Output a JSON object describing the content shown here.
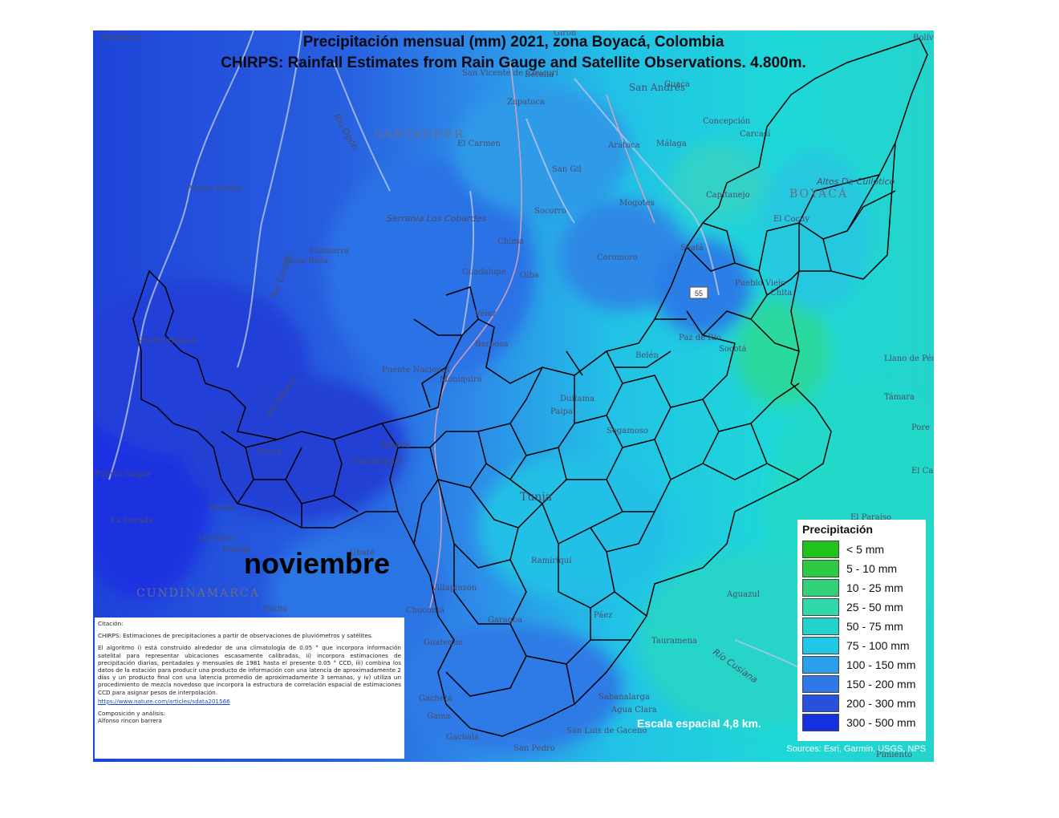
{
  "title_line1": "Precipitación mensual (mm)  2021, zona Boyacá, Colombia",
  "title_line2": "CHIRPS: Rainfall Estimates from Rain Gauge and Satellite Observations.  4.800m.",
  "month_label": "noviembre",
  "scale_text": "Escala espacial 4,8 km.",
  "sources_text": "Sources: Esri, Garmin, USGS, NPS",
  "road_shield": "55",
  "legend": {
    "title": "Precipitación",
    "classes": [
      {
        "label": "< 5 mm",
        "color": "#22c21c"
      },
      {
        "label": "5 - 10 mm",
        "color": "#2fca45"
      },
      {
        "label": "10 - 25 mm",
        "color": "#33d07a"
      },
      {
        "label": "25 - 50 mm",
        "color": "#2ed8a8"
      },
      {
        "label": "50 - 75 mm",
        "color": "#22d3cc"
      },
      {
        "label": "75 - 100 mm",
        "color": "#1ec8e6"
      },
      {
        "label": "100 - 150 mm",
        "color": "#2aa0ea"
      },
      {
        "label": "150 - 200 mm",
        "color": "#2f78e8"
      },
      {
        "label": "200 - 300 mm",
        "color": "#2750dc"
      },
      {
        "label": "300 - 500 mm",
        "color": "#1530e0"
      }
    ]
  },
  "citation": {
    "heading": "Citación:",
    "line1": "CHIRPS: Estimaciones de precipitaciones a partir de observaciones de pluviómetros y satélites.",
    "body": "El algoritmo i) está construido alrededor de una climatología de 0.05 ° que incorpora información satelital para representar ubicaciones escasamente calibradas, ii) incorpora estimaciones de precipitación diarias, pentadales y mensuales de 1981 hasta el presente 0.05 ° CCD, iii) combina los datos de la estación para producir una producto de información con una latencia de aproximadamente 2 días y un producto final con una latencia promedio de aproximadamente 3 semanas, y iv) utiliza un procedimiento de mezcla novedoso que incorpora la estructura de correlación espacial de estimaciones CCD para asignar pesos de interpolación.",
    "link": "https://www.nature.com/articles/sdata201566",
    "credit_label": "Composición y análisis:",
    "credit_name": "Alfonso rincon barrera"
  },
  "regions": [
    "SANTANDER",
    "BOYACÁ",
    "CUNDINAMARCA"
  ],
  "features": [
    "Serranía Los Cobardes",
    "Altos De Cuilotico",
    "Río Carare",
    "Río Opón",
    "Río Cusiana",
    "Río Minero"
  ],
  "places": [
    "Girón",
    "Bolív",
    "Remedios",
    "Betulia",
    "San Vicente de Chucurí",
    "Zapatoca",
    "San Andrés",
    "Guaca",
    "Concepción",
    "Carcasí",
    "El Carmen",
    "Málaga",
    "Aratoca",
    "San Gil",
    "Socorro",
    "Mogotes",
    "Capitanejo",
    "Puerto Berrío",
    "Cimitarra",
    "Santa Rosa",
    "Chima",
    "Guadalupe",
    "Oiba",
    "Coromoro",
    "Soatá",
    "El Cocuy",
    "Puerto Boyacá",
    "Vélez",
    "Puente Nacional",
    "Barbosa",
    "Moniquirá",
    "Belén",
    "Paz de Río",
    "Pueblo Viejo",
    "Chita",
    "Socotá",
    "Paipa",
    "Duitama",
    "Sogamoso",
    "Saboyá",
    "Chiquinquirá",
    "Tunja",
    "Llano de Pérez",
    "Támara",
    "Pore",
    "El Cauca",
    "El Paraíso",
    "Pauna",
    "Yacopí",
    "La Palma",
    "Topaipí",
    "Ubaté",
    "Villapinzón",
    "Chocontá",
    "Garagoa",
    "Guateque",
    "Páez",
    "Aguazul",
    "Tauramena",
    "Gachetá",
    "Gama",
    "Sabanalarga",
    "Agua Clara",
    "Gachalá",
    "Pacho",
    "Puerto Salgar",
    "La Dorada",
    "Pimiento",
    "Ramiriquí",
    "San Pedro",
    "San Luis de Gaceno"
  ]
}
